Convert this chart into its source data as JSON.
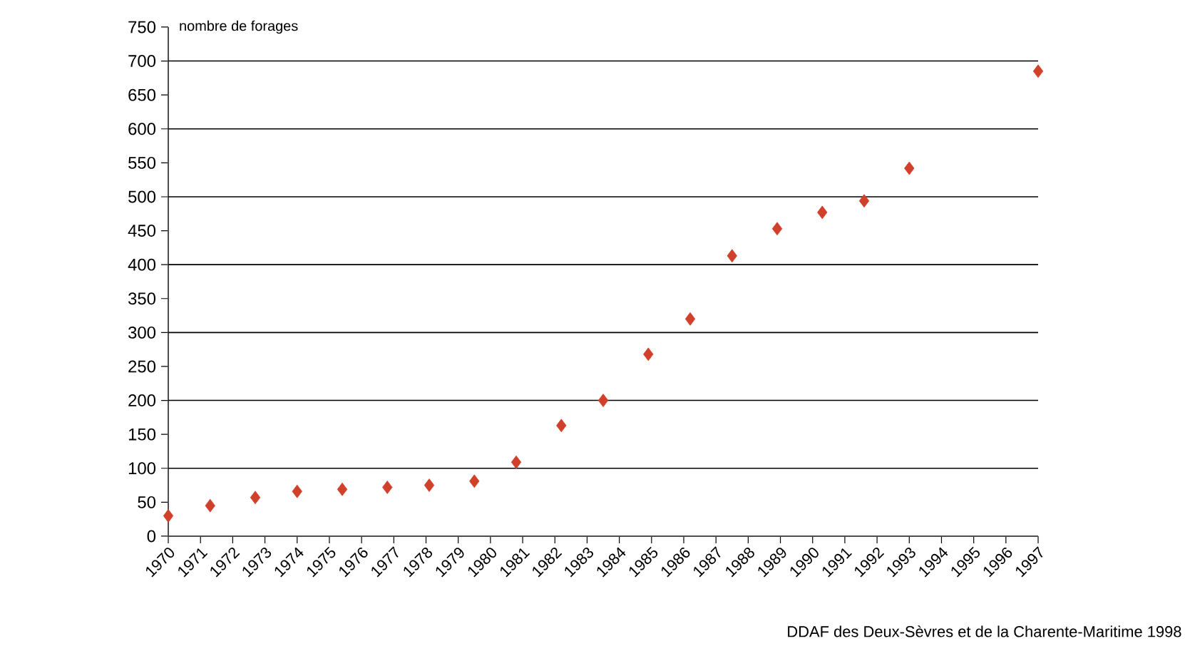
{
  "chart_data": {
    "type": "scatter",
    "ylabel": "nombre de forages",
    "annotations": [
      "DDAF des Deux-Sèvres  et de la Charente-Maritime 1998"
    ],
    "x": [
      1970,
      1971.3,
      1972.7,
      1974.0,
      1975.4,
      1976.8,
      1978.1,
      1979.5,
      1980.8,
      1982.2,
      1983.5,
      1984.9,
      1986.2,
      1987.5,
      1988.9,
      1990.3,
      1991.6,
      1993.0,
      1997
    ],
    "values": [
      30,
      45,
      57,
      66,
      69,
      72,
      75,
      81,
      109,
      163,
      200,
      268,
      320,
      413,
      453,
      477,
      494,
      542,
      685
    ],
    "color": "#d0402a",
    "marker": "diamond",
    "grid": "y",
    "xlim": [
      1970,
      1997
    ],
    "xticks": [
      1970,
      1971,
      1972,
      1973,
      1974,
      1975,
      1976,
      1977,
      1978,
      1979,
      1980,
      1981,
      1982,
      1983,
      1984,
      1985,
      1986,
      1987,
      1988,
      1989,
      1990,
      1991,
      1992,
      1993,
      1994,
      1995,
      1996,
      1997
    ],
    "ylim": [
      0,
      750
    ],
    "yticks": [
      0,
      50,
      100,
      150,
      200,
      250,
      300,
      350,
      400,
      450,
      500,
      550,
      600,
      650,
      700,
      750
    ]
  }
}
